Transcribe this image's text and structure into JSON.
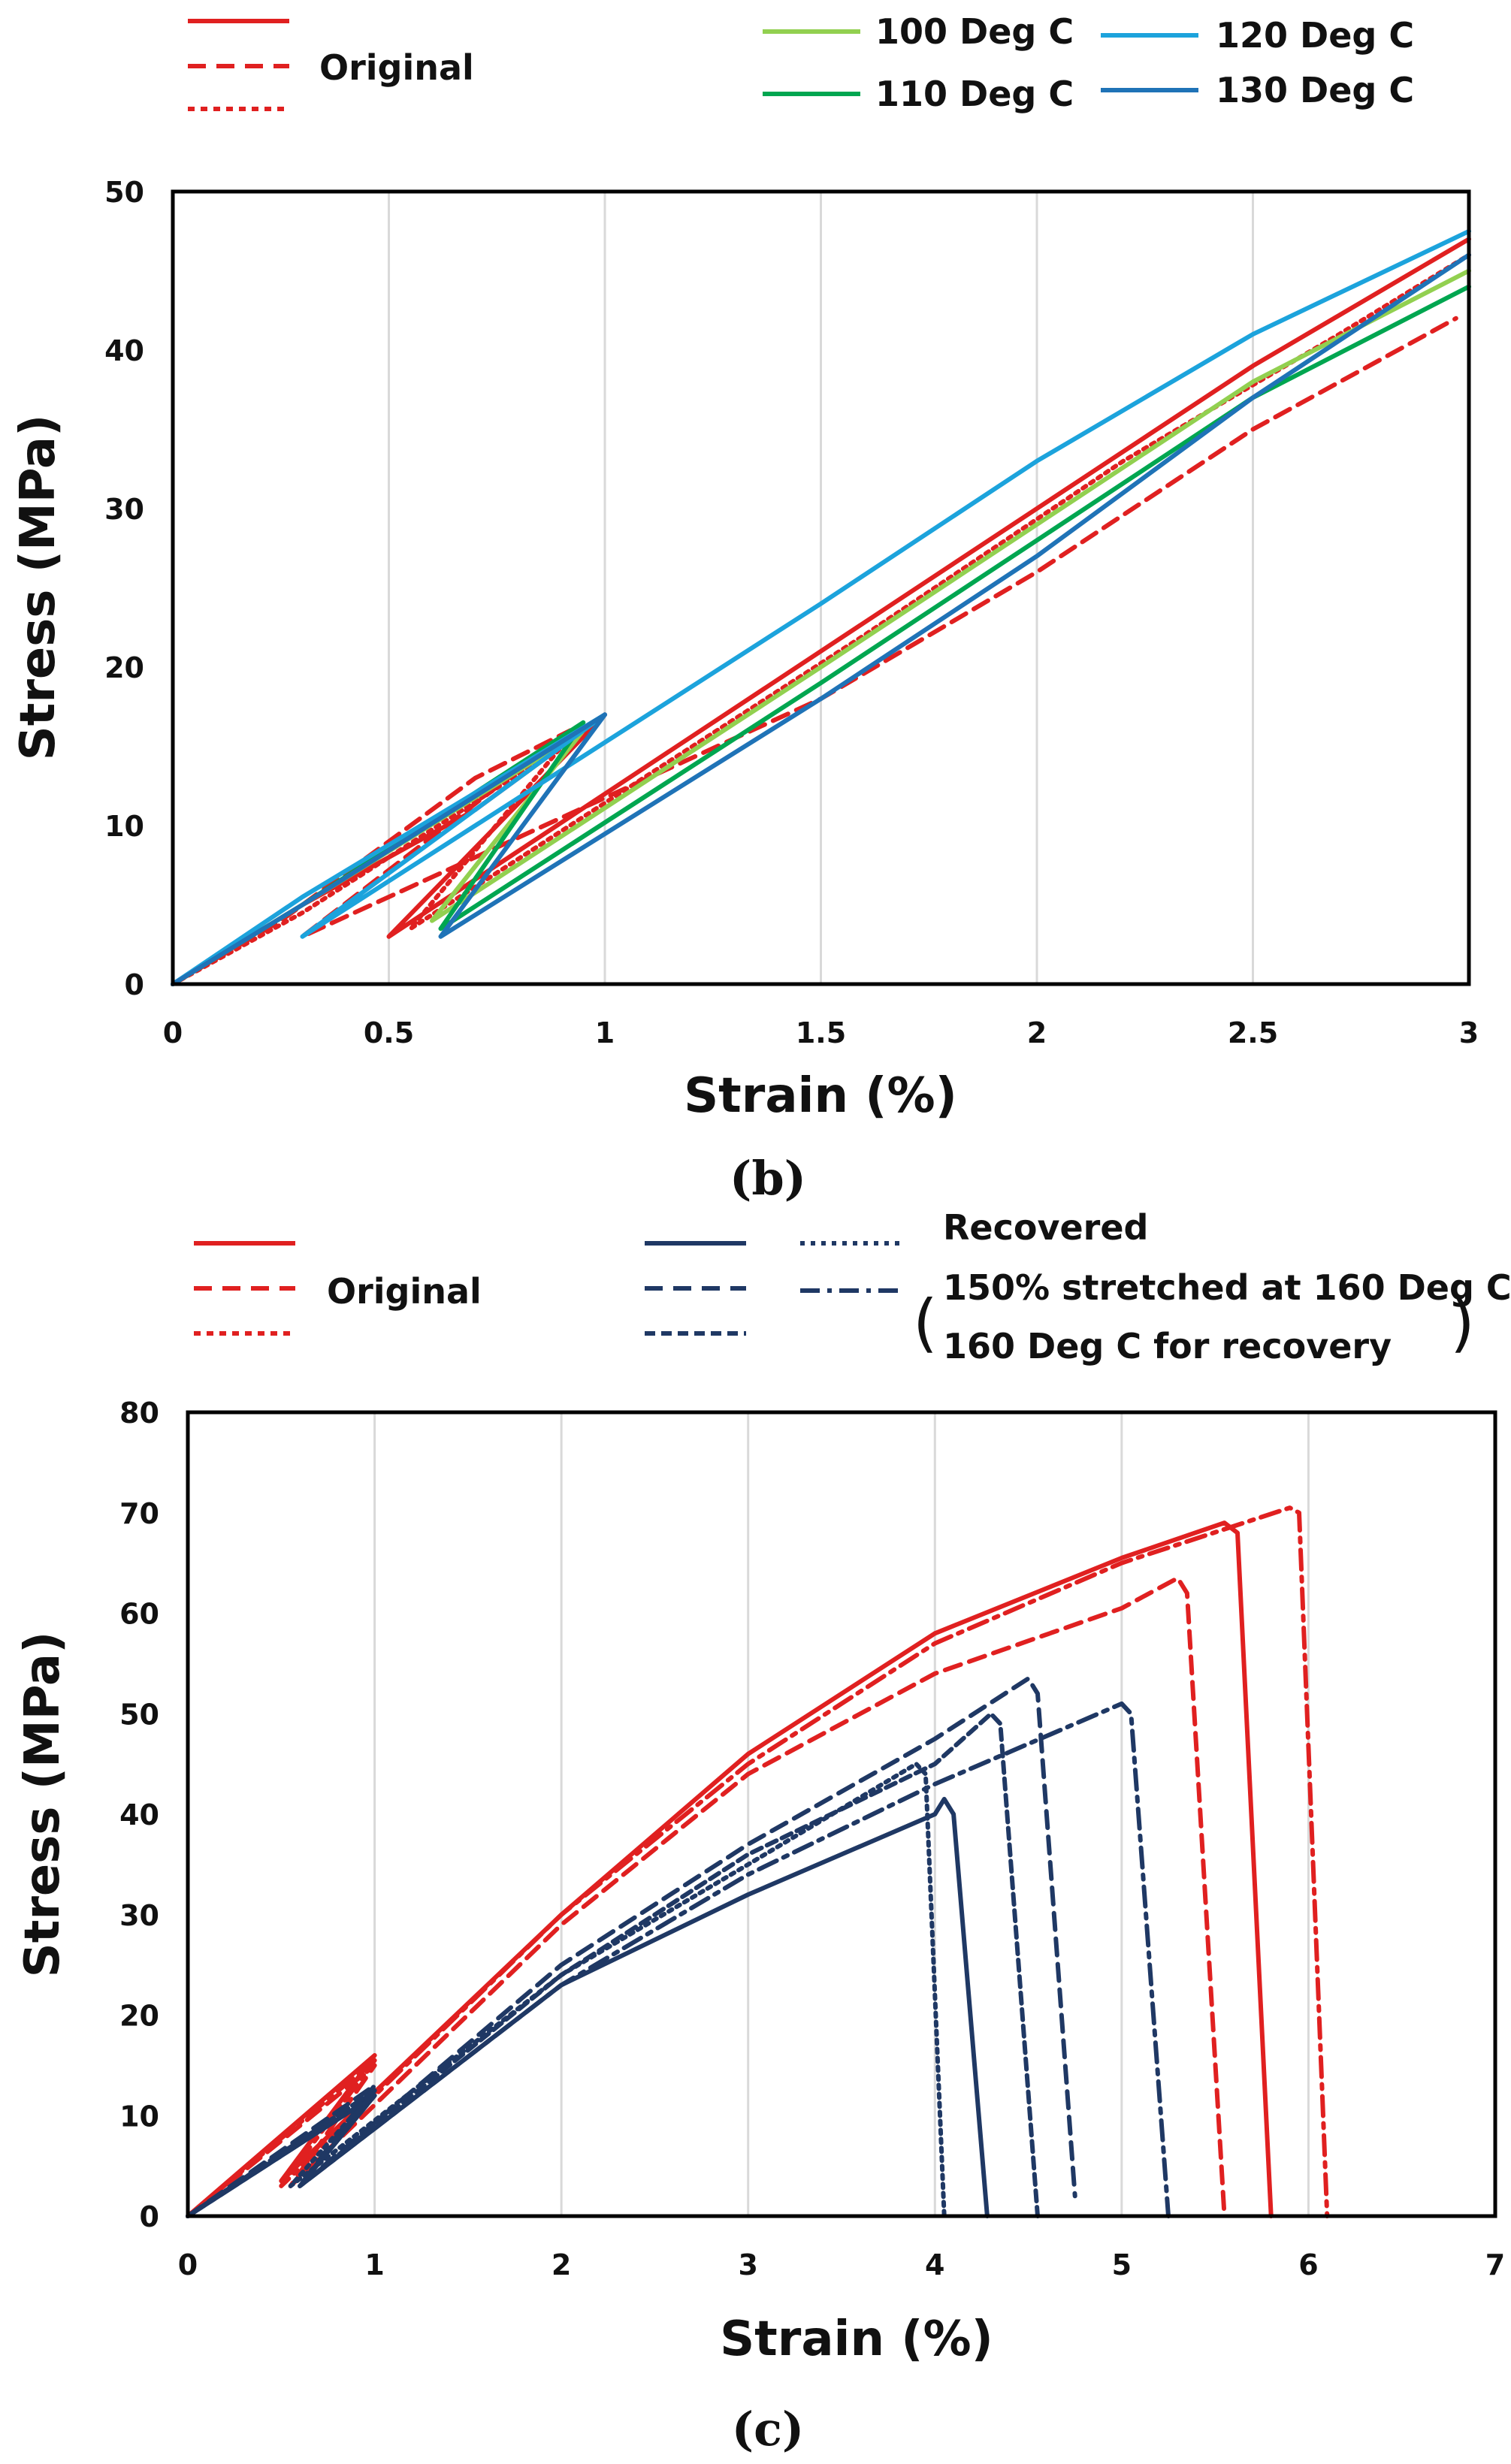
{
  "colors": {
    "original": "#e02020",
    "t100": "#92d050",
    "t110": "#00a650",
    "t120": "#1ca3dc",
    "t130": "#1f73b7",
    "navy": "#1f3864",
    "grid": "#d9d9d9",
    "axis": "#000000"
  },
  "panels": {
    "b": {
      "label_open": "(",
      "label_letter": "b",
      "label_close": ")",
      "legend": {
        "original": "Original",
        "t100": "100 Deg C",
        "t110": "110 Deg C",
        "t120": "120 Deg C",
        "t130": "130 Deg C"
      }
    },
    "c": {
      "label_open": "(",
      "label_letter": "c",
      "label_close": ")",
      "legend": {
        "original": "Original",
        "recovered": "Recovered",
        "condition_line1": "150% stretched at 160 Deg C",
        "condition_line2": "160 Deg C for recovery",
        "paren_open": "(",
        "paren_close": ")"
      }
    }
  },
  "chart_data": [
    {
      "id": "b",
      "type": "line",
      "title": "",
      "xlabel": "Strain (%)",
      "ylabel": "Stress (MPa)",
      "xlim": [
        0,
        3
      ],
      "ylim": [
        0,
        50
      ],
      "xticks": [
        0,
        0.5,
        1,
        1.5,
        2,
        2.5,
        3
      ],
      "xtick_labels": [
        "0",
        "0.5",
        "1",
        "1.5",
        "2",
        "2.5",
        "3"
      ],
      "yticks": [
        0,
        10,
        20,
        30,
        40,
        50
      ],
      "ytick_labels": [
        "0",
        "10",
        "20",
        "30",
        "40",
        "50"
      ],
      "grid": "vertical",
      "legend_position": "top",
      "series": [
        {
          "name": "Original",
          "color_key": "original",
          "dash": "solid",
          "points": [
            [
              0,
              0
            ],
            [
              0.3,
              5
            ],
            [
              0.7,
              11
            ],
            [
              1,
              17
            ],
            [
              0.5,
              3
            ],
            [
              1.5,
              21
            ],
            [
              2,
              30
            ],
            [
              2.5,
              39
            ],
            [
              3,
              47
            ]
          ]
        },
        {
          "name": "Original",
          "color_key": "original",
          "dash": "dashed",
          "points": [
            [
              0,
              0
            ],
            [
              0.25,
              4
            ],
            [
              0.7,
              13
            ],
            [
              0.92,
              16
            ],
            [
              0.3,
              3
            ],
            [
              1.5,
              18
            ],
            [
              2,
              26
            ],
            [
              2.5,
              35
            ],
            [
              2.97,
              42
            ]
          ]
        },
        {
          "name": "Original",
          "color_key": "original",
          "dash": "dotted",
          "points": [
            [
              0,
              0
            ],
            [
              0.3,
              4.5
            ],
            [
              0.9,
              15
            ],
            [
              0.55,
              3.5
            ],
            [
              1.6,
              22
            ],
            [
              2.2,
              33
            ],
            [
              2.7,
              41
            ],
            [
              3,
              46
            ]
          ]
        },
        {
          "name": "100 Deg C",
          "color_key": "t100",
          "dash": "solid",
          "points": [
            [
              0,
              0
            ],
            [
              0.3,
              5
            ],
            [
              0.95,
              16
            ],
            [
              0.6,
              4
            ],
            [
              1.5,
              20
            ],
            [
              2,
              29
            ],
            [
              2.5,
              38
            ],
            [
              3,
              45
            ]
          ]
        },
        {
          "name": "110 Deg C",
          "color_key": "t110",
          "dash": "solid",
          "points": [
            [
              0,
              0
            ],
            [
              0.3,
              5
            ],
            [
              0.95,
              16.5
            ],
            [
              0.62,
              3.5
            ],
            [
              1.5,
              19
            ],
            [
              2,
              28
            ],
            [
              2.5,
              37
            ],
            [
              3,
              44
            ]
          ]
        },
        {
          "name": "120 Deg C",
          "color_key": "t120",
          "dash": "solid",
          "points": [
            [
              0,
              0
            ],
            [
              0.3,
              5.5
            ],
            [
              1,
              17
            ],
            [
              0.3,
              3
            ],
            [
              1.5,
              24
            ],
            [
              2,
              33
            ],
            [
              2.5,
              41
            ],
            [
              3,
              47.5
            ]
          ]
        },
        {
          "name": "130 Deg C",
          "color_key": "t130",
          "dash": "solid",
          "points": [
            [
              0,
              0
            ],
            [
              0.3,
              5
            ],
            [
              1,
              17
            ],
            [
              0.62,
              3
            ],
            [
              1.5,
              18
            ],
            [
              2,
              27
            ],
            [
              2.5,
              37
            ],
            [
              3,
              46
            ]
          ]
        }
      ]
    },
    {
      "id": "c",
      "type": "line",
      "title": "",
      "xlabel": "Strain (%)",
      "ylabel": "Stress (MPa)",
      "xlim": [
        0,
        7
      ],
      "ylim": [
        0,
        80
      ],
      "xticks": [
        0,
        1,
        2,
        3,
        4,
        5,
        6,
        7
      ],
      "xtick_labels": [
        "0",
        "1",
        "2",
        "3",
        "4",
        "5",
        "6",
        "7"
      ],
      "yticks": [
        0,
        10,
        20,
        30,
        40,
        50,
        60,
        70,
        80
      ],
      "ytick_labels": [
        "0",
        "10",
        "20",
        "30",
        "40",
        "50",
        "60",
        "70",
        "80"
      ],
      "grid": "vertical",
      "legend_position": "top",
      "series": [
        {
          "name": "Original",
          "color_key": "original",
          "dash": "solid",
          "points": [
            [
              0,
              0
            ],
            [
              1,
              16
            ],
            [
              0.5,
              3.5
            ],
            [
              2,
              30
            ],
            [
              3,
              46
            ],
            [
              4,
              58
            ],
            [
              5,
              65.5
            ],
            [
              5.55,
              69
            ],
            [
              5.62,
              68
            ],
            [
              5.8,
              0
            ]
          ]
        },
        {
          "name": "Original",
          "color_key": "original",
          "dash": "dashed",
          "points": [
            [
              0,
              0
            ],
            [
              1,
              15
            ],
            [
              0.55,
              3
            ],
            [
              2,
              29
            ],
            [
              3,
              44
            ],
            [
              4,
              54
            ],
            [
              5,
              60.5
            ],
            [
              5.3,
              63.5
            ],
            [
              5.35,
              62
            ],
            [
              5.55,
              0
            ]
          ]
        },
        {
          "name": "Original",
          "color_key": "original",
          "dash": "dashdot",
          "points": [
            [
              0,
              0
            ],
            [
              1,
              15.5
            ],
            [
              0.5,
              3
            ],
            [
              2,
              30
            ],
            [
              3,
              45
            ],
            [
              4,
              57
            ],
            [
              5,
              65
            ],
            [
              5.9,
              70.5
            ],
            [
              5.95,
              70
            ],
            [
              6.1,
              0
            ]
          ]
        },
        {
          "name": "Recovered",
          "color_key": "navy",
          "dash": "solid",
          "points": [
            [
              0,
              0
            ],
            [
              1,
              12
            ],
            [
              0.6,
              3
            ],
            [
              2,
              23
            ],
            [
              3,
              32
            ],
            [
              4,
              40
            ],
            [
              4.05,
              41.5
            ],
            [
              4.1,
              40
            ],
            [
              4.28,
              0
            ]
          ]
        },
        {
          "name": "Recovered",
          "color_key": "navy",
          "dash": "dashed",
          "points": [
            [
              0,
              0
            ],
            [
              1,
              13
            ],
            [
              0.6,
              3
            ],
            [
              2,
              25
            ],
            [
              3,
              37
            ],
            [
              4,
              47.5
            ],
            [
              4.5,
              53.5
            ],
            [
              4.55,
              52
            ],
            [
              4.75,
              2
            ]
          ]
        },
        {
          "name": "Recovered",
          "color_key": "navy",
          "dash": "dotted",
          "points": [
            [
              0,
              0
            ],
            [
              1,
              12.5
            ],
            [
              0.55,
              3
            ],
            [
              2,
              24
            ],
            [
              3,
              35
            ],
            [
              3.9,
              45
            ],
            [
              3.95,
              44
            ],
            [
              4.05,
              0
            ]
          ]
        },
        {
          "name": "150% stretched at 160 Deg C",
          "color_key": "navy",
          "dash": "dashdot",
          "points": [
            [
              0,
              0
            ],
            [
              1,
              12
            ],
            [
              0.6,
              3
            ],
            [
              2,
              23
            ],
            [
              3,
              34
            ],
            [
              4,
              43
            ],
            [
              5,
              51
            ],
            [
              5.05,
              50
            ],
            [
              5.25,
              0
            ]
          ]
        },
        {
          "name": "160 Deg C for recovery",
          "color_key": "navy",
          "dash": "shortdash",
          "points": [
            [
              0,
              0
            ],
            [
              1,
              12.5
            ],
            [
              0.6,
              3
            ],
            [
              2,
              24
            ],
            [
              3,
              36
            ],
            [
              4,
              45
            ],
            [
              4.3,
              50
            ],
            [
              4.35,
              49
            ],
            [
              4.55,
              0
            ]
          ]
        }
      ]
    }
  ]
}
